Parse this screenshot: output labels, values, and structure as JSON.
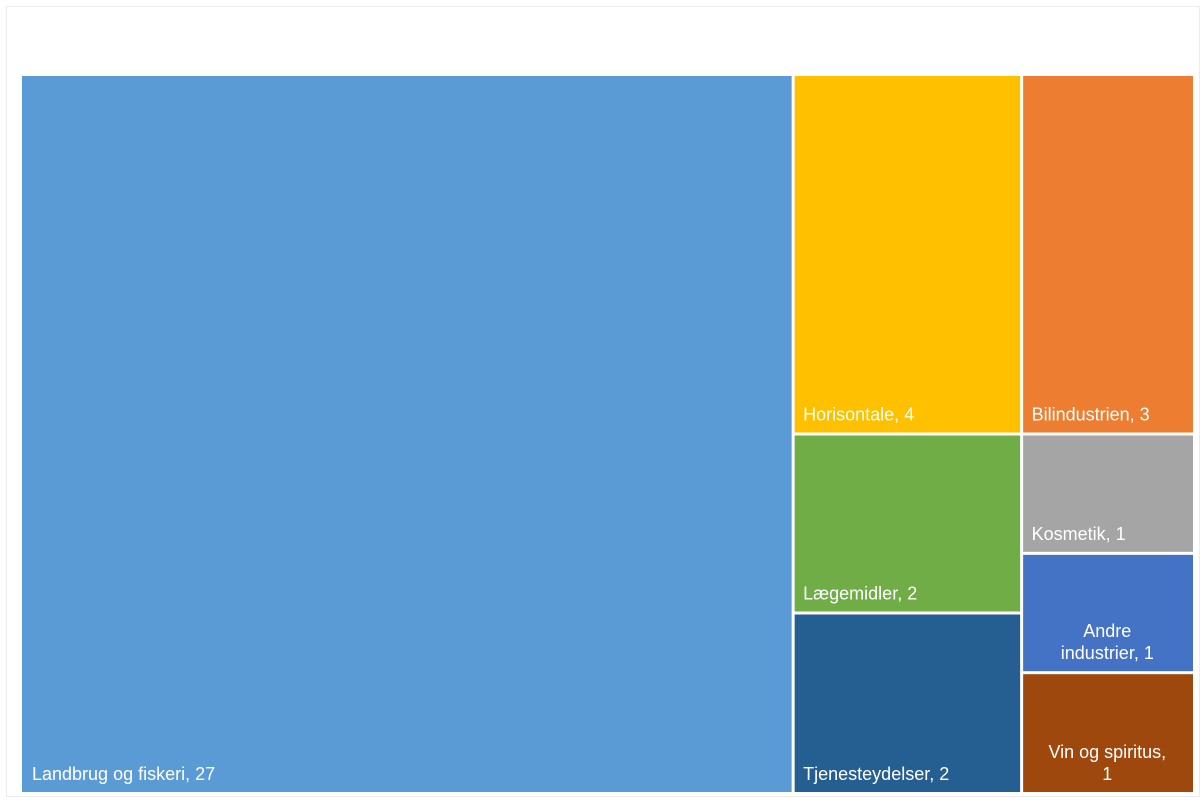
{
  "chart_data": {
    "type": "treemap",
    "title": "",
    "items": [
      {
        "label": "Landbrug og fiskeri, 27",
        "name": "Landbrug og fiskeri",
        "value": 27,
        "color": "#5B9BD5"
      },
      {
        "label": "Horisontale, 4",
        "name": "Horisontale",
        "value": 4,
        "color": "#FFC000"
      },
      {
        "label": "Bilindustrien, 3",
        "name": "Bilindustrien",
        "value": 3,
        "color": "#ED7D31"
      },
      {
        "label": "Lægemidler, 2",
        "name": "Lægemidler",
        "value": 2,
        "color": "#70AD47"
      },
      {
        "label": "Kosmetik, 1",
        "name": "Kosmetik",
        "value": 1,
        "color": "#A5A5A5"
      },
      {
        "label": "Andre industrier, 1",
        "name": "Andre industrier",
        "value": 1,
        "color": "#4472C4"
      },
      {
        "label": "Tjenesteydelser, 2",
        "name": "Tjenesteydelser",
        "value": 2,
        "color": "#255E91"
      },
      {
        "label": "Vin og spiritus, 1",
        "name": "Vin og spiritus",
        "value": 1,
        "color": "#9E480E"
      }
    ]
  }
}
